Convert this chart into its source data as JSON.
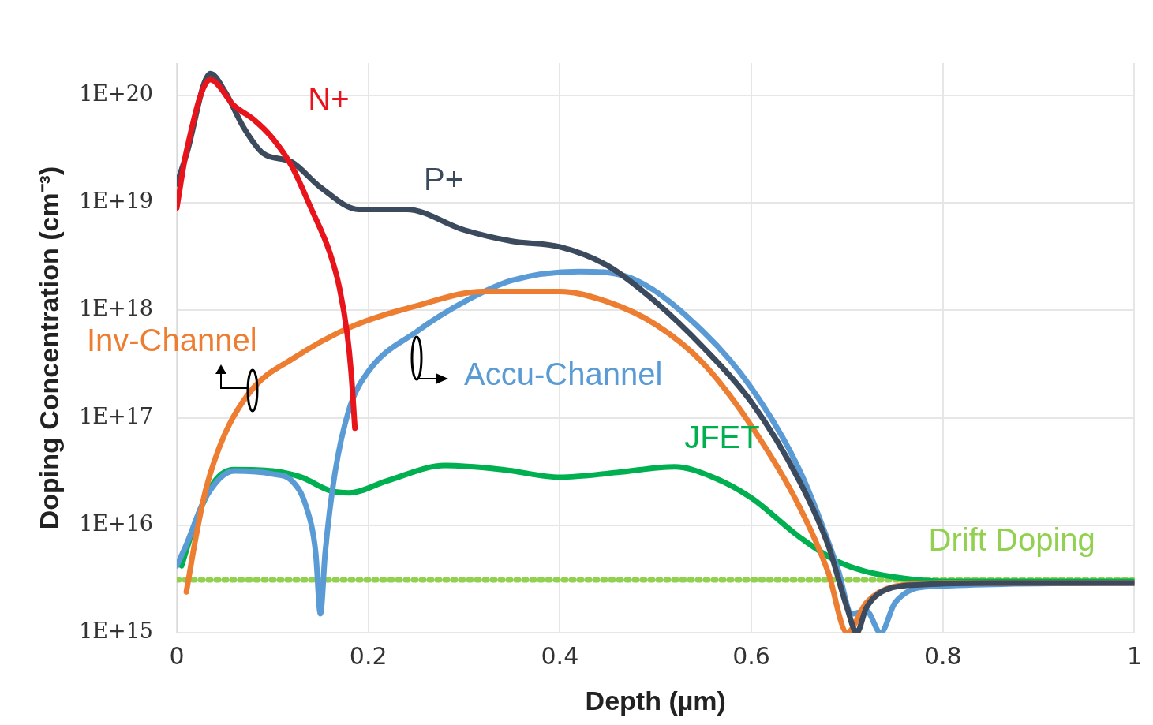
{
  "chart_data": {
    "type": "line",
    "xlabel": "Depth (µm)",
    "ylabel": "Doping Concentration (cm⁻³)",
    "log": "y",
    "grid": true,
    "legend": false,
    "marker": "none",
    "line_style": "solid",
    "xlim": [
      0,
      1
    ],
    "xticks": [
      0,
      0.2,
      0.4,
      0.6,
      0.8,
      1
    ],
    "ylim": [
      1000000000000000.0,
      2e+20
    ],
    "yticks": [
      {
        "value": 1000000000000000.0,
        "label": "1E+15"
      },
      {
        "value": 1e+16,
        "label": "1E+16"
      },
      {
        "value": 1e+17,
        "label": "1E+17"
      },
      {
        "value": 1e+18,
        "label": "1E+18"
      },
      {
        "value": 1e+19,
        "label": "1E+19"
      },
      {
        "value": 1e+20,
        "label": "1E+20"
      }
    ],
    "series": [
      {
        "name": "N+",
        "color": "#e8141c",
        "x": [
          0,
          0.01,
          0.035,
          0.06,
          0.08,
          0.1,
          0.12,
          0.14,
          0.16,
          0.17,
          0.178,
          0.182,
          0.186
        ],
        "values": [
          9e+18,
          3e+19,
          1.4e+20,
          8e+19,
          6e+19,
          4e+19,
          2.2e+19,
          9e+18,
          3.4e+18,
          1.6e+18,
          6e+17,
          2.7e+17,
          8e+16
        ]
      },
      {
        "name": "P+",
        "color": "#3c4a5e",
        "x": [
          0,
          0.01,
          0.035,
          0.05,
          0.07,
          0.09,
          0.12,
          0.15,
          0.19,
          0.24,
          0.3,
          0.35,
          0.4,
          0.45,
          0.5,
          0.55,
          0.6,
          0.65,
          0.68,
          0.7,
          0.71,
          0.72,
          0.74,
          0.78,
          0.85,
          1
        ],
        "values": [
          1.5e+19,
          2.8e+19,
          1.6e+20,
          1.1e+20,
          5e+19,
          2.9e+19,
          2.4e+19,
          1.4e+19,
          8.7e+18,
          8.7e+18,
          5.6e+18,
          4.4e+18,
          3.9e+18,
          2.6e+18,
          1.2e+18,
          4.5e+17,
          1.4e+17,
          2.6e+16,
          6600000000000000.0,
          1700000000000000.0,
          1000000000000000.0,
          1700000000000000.0,
          2500000000000000.0,
          2800000000000000.0,
          2900000000000000.0,
          2900000000000000.0
        ]
      },
      {
        "name": "Inv-Channel",
        "color": "#ed7d31",
        "x": [
          0.01,
          0.02,
          0.03,
          0.05,
          0.08,
          0.12,
          0.18,
          0.25,
          0.32,
          0.4,
          0.45,
          0.5,
          0.55,
          0.6,
          0.65,
          0.68,
          0.7,
          0.72,
          0.75,
          0.8,
          1
        ],
        "values": [
          2400000000000000.0,
          7800000000000000.0,
          2.1e+16,
          7e+16,
          1.9e+17,
          3.5e+17,
          6.9e+17,
          1.1e+18,
          1.5e+18,
          1.5e+18,
          1.2e+18,
          7.4e+17,
          3.2e+17,
          8.4e+16,
          1.5e+16,
          3700000000000000.0,
          1000000000000000.0,
          1900000000000000.0,
          2700000000000000.0,
          2900000000000000.0,
          2900000000000000.0
        ]
      },
      {
        "name": "Accu-Channel",
        "color": "#5b9bd5",
        "x": [
          0,
          0.01,
          0.03,
          0.06,
          0.1,
          0.12,
          0.135,
          0.145,
          0.15,
          0.155,
          0.165,
          0.18,
          0.2,
          0.25,
          0.3,
          0.35,
          0.42,
          0.48,
          0.55,
          0.6,
          0.65,
          0.69,
          0.705,
          0.72,
          0.735,
          0.75,
          0.79,
          1
        ],
        "values": [
          4200000000000000.0,
          6600000000000000.0,
          1.8e+16,
          3.2e+16,
          3e+16,
          2.6e+16,
          1.5e+16,
          5600000000000000.0,
          1500000000000000.0,
          5600000000000000.0,
          3e+16,
          1.2e+17,
          2.7e+17,
          6.3e+17,
          1.2e+18,
          1.9e+18,
          2.3e+18,
          1.9e+18,
          6.3e+17,
          1.9e+17,
          3.3e+16,
          4000000000000000.0,
          1500000000000000.0,
          1600000000000000.0,
          1000000000000000.0,
          1900000000000000.0,
          2700000000000000.0,
          2900000000000000.0
        ]
      },
      {
        "name": "JFET",
        "color": "#00b050",
        "x": [
          0.005,
          0.02,
          0.04,
          0.06,
          0.1,
          0.13,
          0.16,
          0.18,
          0.22,
          0.28,
          0.34,
          0.4,
          0.46,
          0.52,
          0.56,
          0.6,
          0.65,
          0.69,
          0.72,
          0.76,
          0.8,
          1
        ],
        "values": [
          4200000000000000.0,
          1.1e+16,
          2.6e+16,
          3.3e+16,
          3.2e+16,
          2.8e+16,
          2.1e+16,
          2e+16,
          2.6e+16,
          3.6e+16,
          3.3e+16,
          2.8e+16,
          3.1e+16,
          3.5e+16,
          2.8e+16,
          1.8e+16,
          7800000000000000.0,
          4600000000000000.0,
          3700000000000000.0,
          3200000000000000.0,
          3000000000000000.0,
          3000000000000000.0
        ]
      },
      {
        "name": "Drift Doping",
        "color": "#92d050",
        "line_style": "dotted",
        "x": [
          0,
          1
        ],
        "values": [
          3100000000000000.0,
          3100000000000000.0
        ]
      }
    ]
  }
}
